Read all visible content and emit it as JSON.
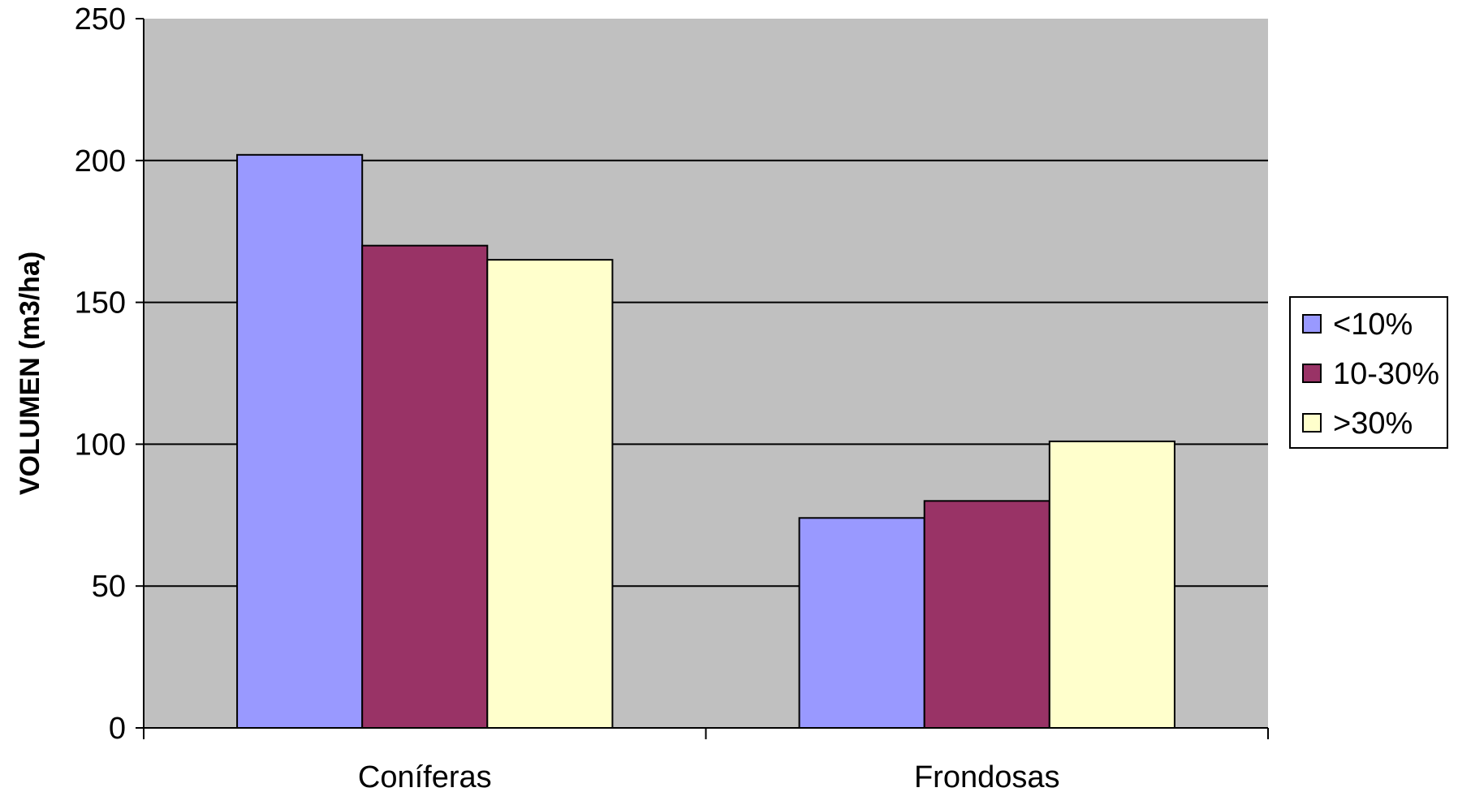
{
  "chart_data": {
    "type": "bar",
    "categories": [
      "Coníferas",
      "Frondosas"
    ],
    "series": [
      {
        "name": "<10%",
        "values": [
          202,
          74
        ],
        "color": "#9999ff"
      },
      {
        "name": "10-30%",
        "values": [
          170,
          80
        ],
        "color": "#993366"
      },
      {
        "name": ">30%",
        "values": [
          165,
          101
        ],
        "color": "#ffffcc"
      }
    ],
    "title": "",
    "xlabel": "",
    "ylabel": "VOLUMEN (m3/ha)",
    "ylim": [
      0,
      250
    ],
    "yticks": [
      0,
      50,
      100,
      150,
      200,
      250
    ],
    "grid": true,
    "legend_position": "right",
    "plot_background": "#c0c0c0"
  }
}
